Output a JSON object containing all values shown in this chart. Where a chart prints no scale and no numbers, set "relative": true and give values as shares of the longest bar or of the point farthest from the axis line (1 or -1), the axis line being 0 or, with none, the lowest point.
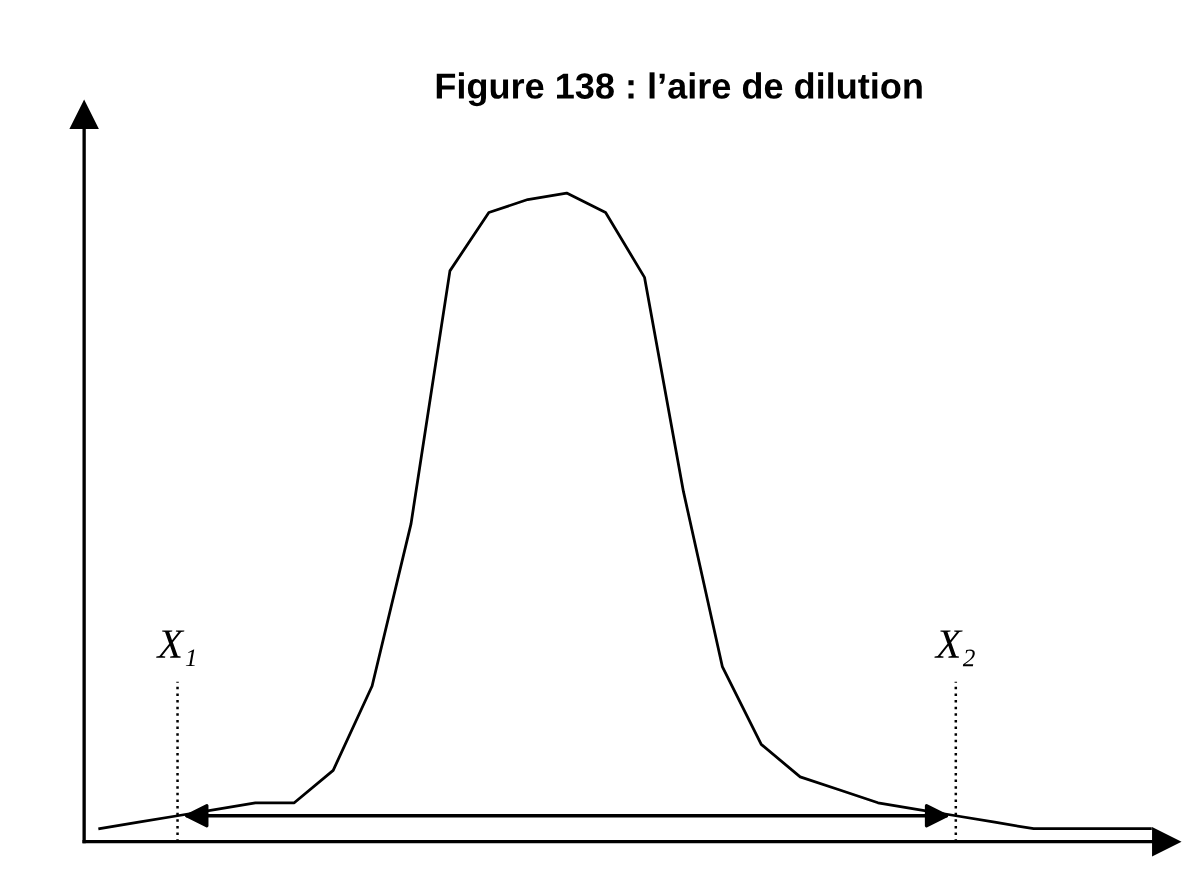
{
  "chart_data": {
    "type": "line",
    "title": "Figure 138 : l’aire de dilution",
    "relative": true,
    "categories": [
      null,
      null,
      null,
      null,
      null,
      null,
      null,
      null,
      null,
      null,
      null,
      null,
      null,
      null,
      null,
      null,
      null,
      null,
      null,
      null,
      null,
      null,
      null,
      null,
      null,
      null,
      null,
      null
    ],
    "series": [
      {
        "color": "#000000",
        "values": [
          0.02,
          0.03,
          0.04,
          0.05,
          0.06,
          0.06,
          0.11,
          0.24,
          0.49,
          0.88,
          0.97,
          0.99,
          1.0,
          0.97,
          0.87,
          0.54,
          0.27,
          0.15,
          0.1,
          0.08,
          0.06,
          0.05,
          0.04,
          0.03,
          0.02,
          0.02,
          0.02,
          0.02
        ]
      }
    ],
    "annotations": [
      "X₁",
      "X₂"
    ],
    "marker": "none",
    "line_style": "solid",
    "legend": false
  }
}
